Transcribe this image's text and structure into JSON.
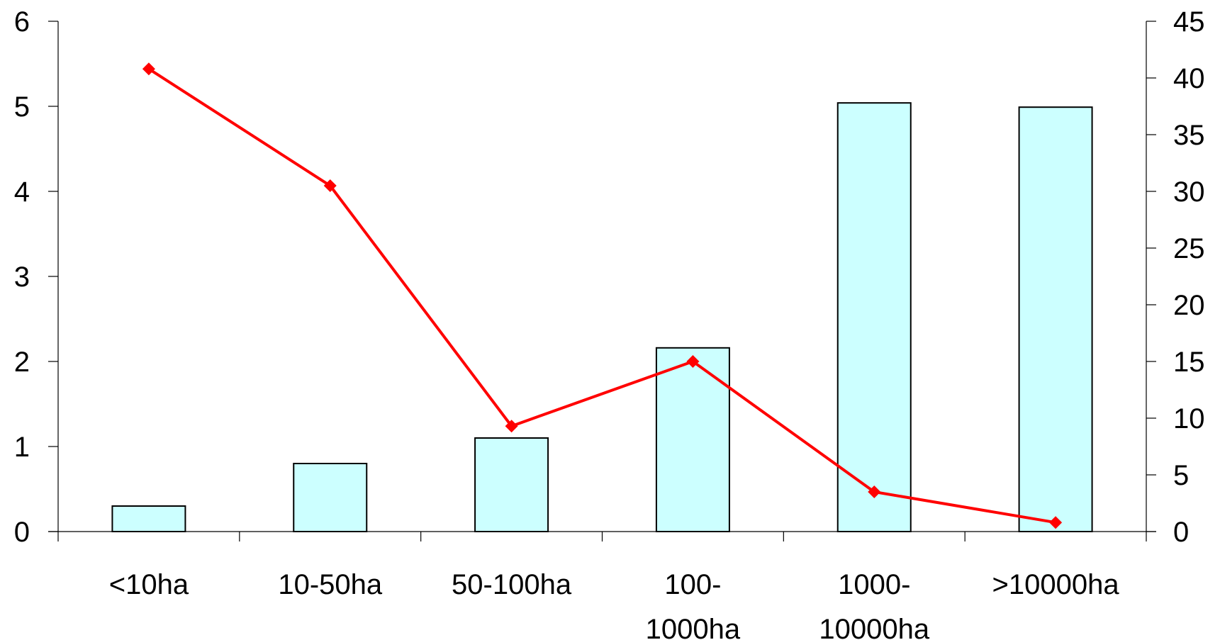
{
  "chart_data": {
    "type": "bar",
    "categories": [
      [
        "<10ha"
      ],
      [
        "10-50ha"
      ],
      [
        "50-100ha"
      ],
      [
        "100-",
        "1000ha"
      ],
      [
        "1000-",
        "10000ha"
      ],
      [
        ">10000ha"
      ]
    ],
    "series": [
      {
        "type": "bar",
        "axis": "left",
        "values": [
          0.3,
          0.8,
          1.1,
          2.16,
          5.04,
          4.99
        ],
        "color": "#ccffff"
      },
      {
        "type": "line",
        "axis": "right",
        "marker": "diamond",
        "values": [
          40.8,
          30.5,
          9.3,
          15.0,
          3.5,
          0.8
        ],
        "color": "#ff0000"
      }
    ],
    "y_left": {
      "min": 0,
      "max": 6,
      "ticks": [
        0,
        1,
        2,
        3,
        4,
        5,
        6
      ]
    },
    "y_right": {
      "min": 0,
      "max": 45,
      "ticks": [
        0,
        5,
        10,
        15,
        20,
        25,
        30,
        35,
        40,
        45
      ]
    },
    "title": "",
    "xlabel": "",
    "ylabel": "",
    "grid": false,
    "legend": "none"
  }
}
